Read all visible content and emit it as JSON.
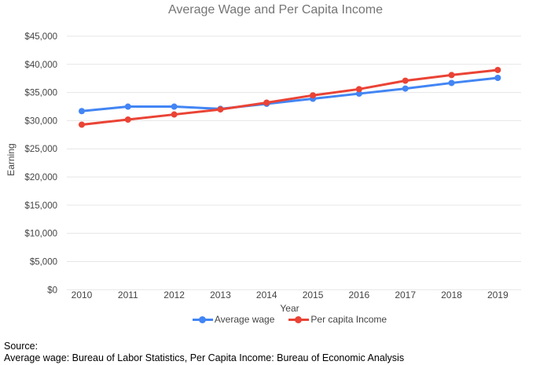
{
  "chart_data": {
    "type": "line",
    "title": "Average Wage and Per Capita Income",
    "xlabel": "Year",
    "ylabel": "Earning",
    "categories": [
      "2010",
      "2011",
      "2012",
      "2013",
      "2014",
      "2015",
      "2016",
      "2017",
      "2018",
      "2019"
    ],
    "series": [
      {
        "name": "Average wage",
        "color": "#4285f4",
        "values": [
          31700,
          32500,
          32500,
          32100,
          33000,
          33900,
          34800,
          35700,
          36700,
          37600
        ]
      },
      {
        "name": "Per capita Income",
        "color": "#ea4335",
        "values": [
          29300,
          30200,
          31100,
          32000,
          33200,
          34500,
          35600,
          37100,
          38100,
          39000
        ]
      }
    ],
    "ylim": [
      0,
      45000
    ],
    "y_tick_step": 5000,
    "y_tick_labels": [
      "$0",
      "$5,000",
      "$10,000",
      "$15,000",
      "$20,000",
      "$25,000",
      "$30,000",
      "$35,000",
      "$40,000",
      "$45,000"
    ],
    "grid": true,
    "legend_position": "bottom"
  },
  "footer": {
    "source_label": "Source:",
    "source_detail": "Average wage: Bureau of Labor Statistics, Per Capita Income: Bureau of Economic Analysis"
  }
}
